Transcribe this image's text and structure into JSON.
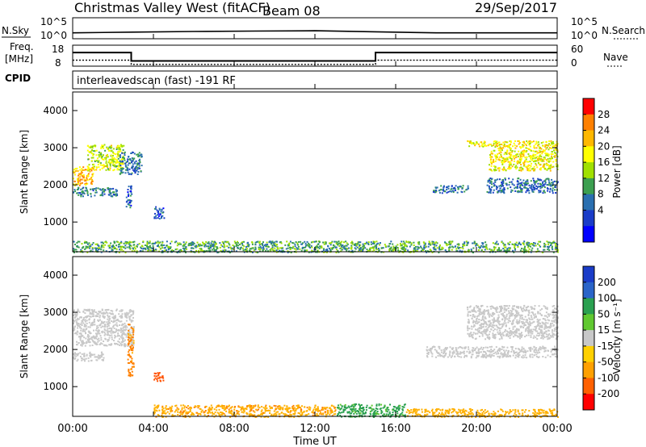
{
  "header": {
    "station": "Christmas Valley West (fitACF)",
    "beam": "Beam 08",
    "date": "29/Sep/2017"
  },
  "noise_panel": {
    "left_label": "N.Sky",
    "right_label": "N.Search",
    "left_ticks": [
      "10^5",
      "10^0"
    ],
    "right_ticks": [
      "10^5",
      "10^0"
    ]
  },
  "freq_panel": {
    "left_label_1": "Freq.",
    "left_label_2": "[MHz]",
    "right_label": "Nave",
    "left_ticks": [
      "18",
      "8"
    ],
    "right_ticks": [
      "60",
      "0"
    ]
  },
  "cpid_panel": {
    "label": "CPID",
    "text": "interleavedscan (fast) -191 RF"
  },
  "power_panel": {
    "ylabel": "Slant Range [km]",
    "yticks": [
      "4000",
      "3000",
      "2000",
      "1000"
    ],
    "colorbar_label": "Power [dB]",
    "colorbar_ticks": [
      "28",
      "24",
      "20",
      "16",
      "12",
      "8",
      "4"
    ],
    "colorbar_colors": [
      "#ff0000",
      "#ff8000",
      "#ffb800",
      "#ffff00",
      "#a0e000",
      "#3c9f50",
      "#2a6fb0",
      "#1a3cc8",
      "#0000ff"
    ]
  },
  "velocity_panel": {
    "ylabel": "Slant Range [km]",
    "yticks": [
      "4000",
      "3000",
      "2000",
      "1000"
    ],
    "colorbar_label": "Velocity [m s⁻¹]",
    "colorbar_ticks": [
      "200",
      "100",
      "50",
      "15",
      "-15",
      "-50",
      "-100",
      "-200"
    ],
    "colorbar_colors": [
      "#1a3cc8",
      "#2a64c8",
      "#2aa050",
      "#60c830",
      "#c8c8c8",
      "#ffd000",
      "#ffa000",
      "#ff6000",
      "#ff0000"
    ]
  },
  "x_axis": {
    "label": "Time UT",
    "ticks": [
      "00:00",
      "04:00",
      "08:00",
      "12:00",
      "16:00",
      "20:00",
      "00:00"
    ]
  },
  "chart_data": [
    {
      "type": "line",
      "title": "N.Sky / N.Search",
      "x": [
        0,
        3,
        6,
        9,
        12,
        15,
        18,
        21,
        24
      ],
      "series": [
        {
          "name": "N.Sky",
          "values": [
            1.2,
            1.4,
            1.6,
            1.7,
            1.8,
            1.5,
            1.2,
            1.2,
            1.2
          ]
        }
      ]
    },
    {
      "type": "line",
      "title": "Freq. [MHz]",
      "x": [
        0,
        2.9,
        2.9,
        15.0,
        15.0,
        24
      ],
      "series": [
        {
          "name": "Freq.",
          "values": [
            14.5,
            14.5,
            10.5,
            10.5,
            14.5,
            14.5
          ]
        },
        {
          "name": "Nave",
          "values": [
            17,
            17,
            5,
            5,
            17,
            17
          ]
        }
      ]
    },
    {
      "type": "heatmap",
      "title": "Power [dB]",
      "xlim": [
        0,
        24
      ],
      "ylim": [
        200,
        4500
      ],
      "regions": [
        {
          "t0": 0.0,
          "t1": 1.0,
          "r0": 2000,
          "r1": 2500,
          "value": 24
        },
        {
          "t0": 0.7,
          "t1": 2.5,
          "r0": 2400,
          "r1": 3100,
          "value": 18
        },
        {
          "t0": 2.3,
          "t1": 3.4,
          "r0": 2300,
          "r1": 2900,
          "value": 8
        },
        {
          "t0": 0.0,
          "t1": 2.2,
          "r0": 1700,
          "r1": 1950,
          "value": 9
        },
        {
          "t0": 2.6,
          "t1": 2.9,
          "r0": 1400,
          "r1": 2000,
          "value": 6
        },
        {
          "t0": 4.0,
          "t1": 4.5,
          "r0": 1100,
          "r1": 1450,
          "value": 6
        },
        {
          "t0": 0.0,
          "t1": 24.0,
          "r0": 200,
          "r1": 500,
          "value": 12
        },
        {
          "t0": 17.8,
          "t1": 19.6,
          "r0": 1800,
          "r1": 2000,
          "value": 8
        },
        {
          "t0": 19.5,
          "t1": 20.6,
          "r0": 3050,
          "r1": 3200,
          "value": 20
        },
        {
          "t0": 20.6,
          "t1": 24.0,
          "r0": 2400,
          "r1": 3200,
          "value": 20
        },
        {
          "t0": 20.5,
          "t1": 24.0,
          "r0": 1800,
          "r1": 2200,
          "value": 8
        }
      ]
    },
    {
      "type": "heatmap",
      "title": "Velocity",
      "xlim": [
        0,
        24
      ],
      "ylim": [
        200,
        4500
      ],
      "regions": [
        {
          "t0": 0.0,
          "t1": 3.0,
          "r0": 2100,
          "r1": 3100,
          "value": 0
        },
        {
          "t0": 0.0,
          "t1": 1.5,
          "r0": 1700,
          "r1": 1950,
          "value": 0
        },
        {
          "t0": 2.7,
          "t1": 3.0,
          "r0": 1300,
          "r1": 2700,
          "value": -60
        },
        {
          "t0": 4.0,
          "t1": 4.5,
          "r0": 1150,
          "r1": 1400,
          "value": -120
        },
        {
          "t0": 4.0,
          "t1": 13.0,
          "r0": 200,
          "r1": 520,
          "value": -40
        },
        {
          "t0": 13.0,
          "t1": 16.5,
          "r0": 200,
          "r1": 550,
          "value": 40
        },
        {
          "t0": 16.5,
          "t1": 24.0,
          "r0": 200,
          "r1": 420,
          "value": -30
        },
        {
          "t0": 17.5,
          "t1": 20.5,
          "r0": 1800,
          "r1": 2100,
          "value": 0
        },
        {
          "t0": 19.5,
          "t1": 24.0,
          "r0": 2300,
          "r1": 3200,
          "value": 0
        },
        {
          "t0": 20.5,
          "t1": 24.0,
          "r0": 1800,
          "r1": 2100,
          "value": 0
        }
      ]
    }
  ]
}
